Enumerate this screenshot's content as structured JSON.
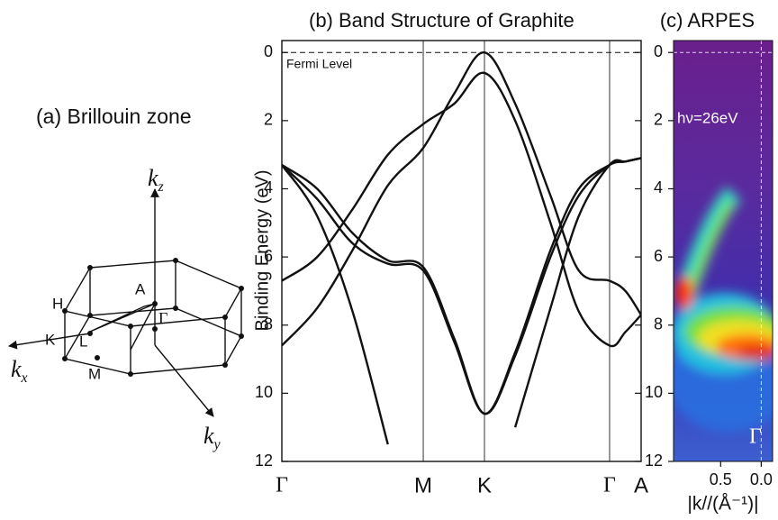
{
  "diagram": {
    "title": "(a)  Brillouin zone",
    "labels": [
      "H",
      "A",
      "K",
      "L",
      "Γ",
      "M"
    ],
    "axes": [
      {
        "main": "k",
        "sub": "z"
      },
      {
        "main": "k",
        "sub": "x"
      },
      {
        "main": "k",
        "sub": "y"
      }
    ]
  },
  "chart_data": [
    {
      "type": "line",
      "title": "(b)  Band Structure of Graphite",
      "y_label": "Binding Energy (eV)",
      "annotation": "Fermi Level",
      "fermi_level": 0,
      "x": [
        0,
        0.25,
        0.5,
        0.75,
        1,
        1.22,
        1.433,
        1.65,
        1.9,
        2.1,
        2.318,
        2.43,
        2.541
      ],
      "series": [
        {
          "color": "#111111",
          "values": [
            8.6,
            7.5,
            5.8,
            3.9,
            2.8,
            1.2,
            0,
            1.5,
            4.2,
            6.4,
            6.7,
            7.0,
            7.7
          ]
        },
        {
          "color": "#111111",
          "values": [
            6.7,
            6.0,
            4.6,
            3.0,
            2.1,
            1.5,
            0.6,
            2.0,
            5.0,
            7.6,
            8.6,
            8.2,
            7.7
          ]
        },
        {
          "color": "#111111",
          "values": [
            3.3,
            4.3,
            5.6,
            6.2,
            6.4,
            8.5,
            10.6,
            8.8,
            5.8,
            4.0,
            3.3,
            3.2,
            3.1
          ]
        },
        {
          "color": "#111111",
          "values": [
            3.3,
            4.0,
            5.3,
            6.1,
            6.3,
            8.4,
            10.6,
            8.9,
            6.0,
            4.2,
            3.3,
            3.2,
            3.1
          ]
        },
        {
          "color": "#111111",
          "values": [
            3.3,
            4.8,
            7.6,
            11.5,
            null,
            null,
            null,
            11.0,
            7.5,
            4.8,
            3.3,
            3.2,
            3.1
          ]
        }
      ],
      "xlim": [
        0,
        2.541
      ],
      "xticks": [
        {
          "value": 0,
          "label": "Γ"
        },
        {
          "value": 1,
          "label": "M"
        },
        {
          "value": 1.433,
          "label": "K"
        },
        {
          "value": 2.318,
          "label": "Γ"
        },
        {
          "value": 2.541,
          "label": "A"
        }
      ],
      "ylim": [
        -0.35,
        12
      ],
      "yticks": [
        0,
        2,
        4,
        6,
        8,
        10,
        12
      ],
      "inverted_y": true,
      "grid": true
    },
    {
      "type": "image",
      "title": "(c) ARPES",
      "annotation": "hν=26eV",
      "point_label": "Γ",
      "x_label": "|k//(Å⁻¹)|",
      "xlim": [
        1.08,
        -0.14
      ],
      "xticks": [
        0.5,
        {
          "value": 0,
          "label": "0.0"
        }
      ],
      "ylim": [
        -0.35,
        12
      ],
      "yticks": [
        0,
        2,
        4,
        6,
        8,
        10,
        12
      ],
      "inverted_y": true
    }
  ]
}
